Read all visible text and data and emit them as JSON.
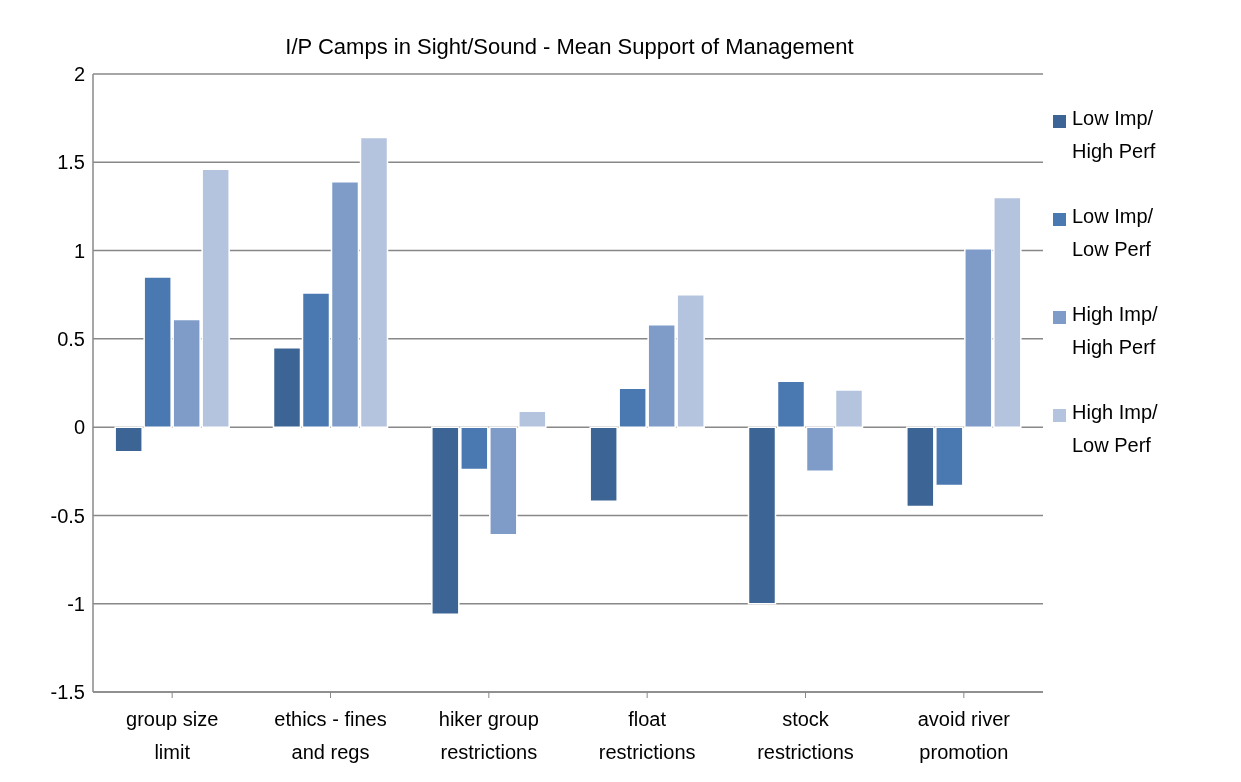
{
  "chart_data": {
    "type": "bar",
    "title": "I/P Camps in Sight/Sound - Mean Support of Management",
    "categories": [
      "group size limit",
      "ethics - fines and regs",
      "hiker group restrictions",
      "float restrictions",
      "stock restrictions",
      "avoid river promotion"
    ],
    "series": [
      {
        "name": "Low Imp/ High Perf",
        "color": "#3c6494",
        "values": [
          -0.14,
          0.45,
          -1.06,
          -0.42,
          -1.0,
          -0.45
        ]
      },
      {
        "name": "Low Imp/ Low Perf",
        "color": "#4a78b0",
        "values": [
          0.85,
          0.76,
          -0.24,
          0.22,
          0.26,
          -0.33
        ]
      },
      {
        "name": "High Imp/ High Perf",
        "color": "#7f9cc8",
        "values": [
          0.61,
          1.39,
          -0.61,
          0.58,
          -0.25,
          1.01
        ]
      },
      {
        "name": "High Imp/ Low Perf",
        "color": "#b4c3de",
        "values": [
          1.46,
          1.64,
          0.09,
          0.75,
          0.21,
          1.3
        ]
      }
    ],
    "ylim": [
      -1.5,
      2
    ],
    "yticks": [
      -1.5,
      -1,
      -0.5,
      0,
      0.5,
      1,
      1.5,
      2
    ],
    "grid": "y",
    "legend": "right"
  }
}
